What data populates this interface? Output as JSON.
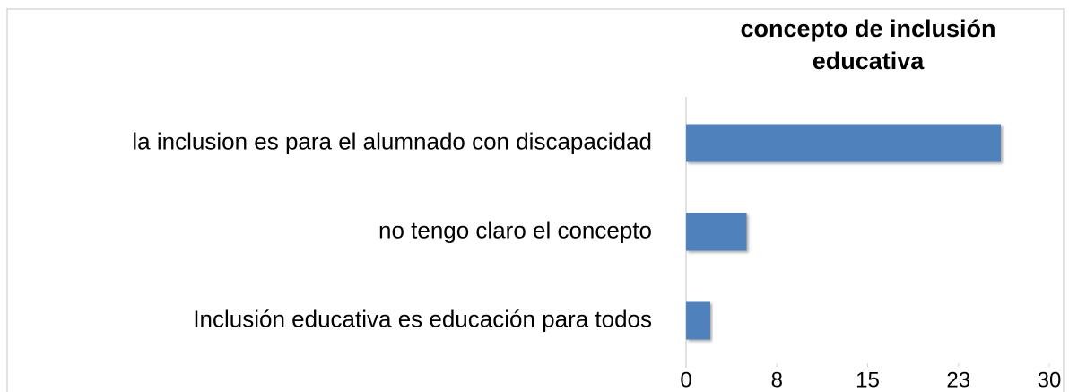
{
  "chart_data": {
    "type": "barh",
    "title": "concepto de inclusión educativa",
    "categories": [
      "la inclusion es para el alumnado con discapacidad",
      "no tengo claro el concepto",
      "Inclusión educativa es educación para todos"
    ],
    "values": [
      26,
      5,
      2
    ],
    "color": "#4f81bd",
    "xlim": [
      0,
      30
    ],
    "xticks": [
      0,
      {
        "value": 7.5,
        "label": "8"
      },
      15,
      {
        "value": 22.5,
        "label": "23"
      },
      30
    ],
    "grid": false
  }
}
